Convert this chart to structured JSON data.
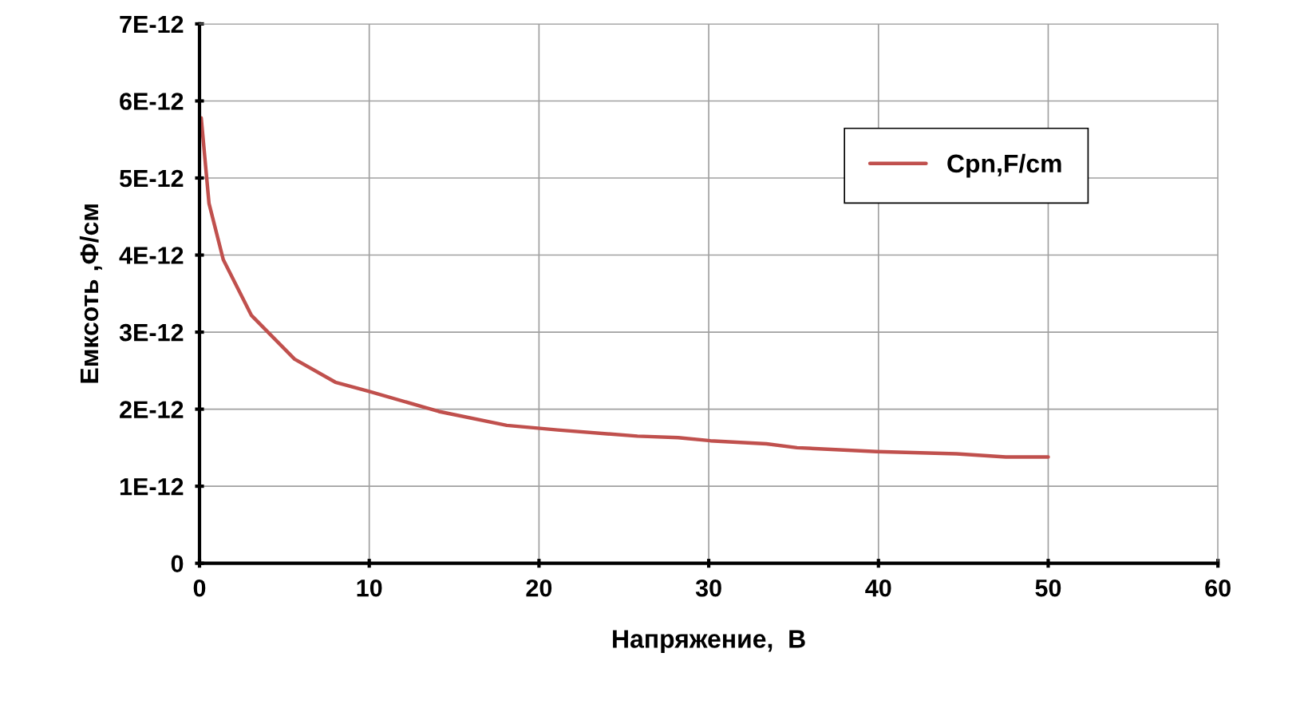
{
  "chart_data": {
    "type": "line",
    "xlabel": "Напряжение,  В",
    "ylabel": "Емксоть ,Ф/см",
    "series": [
      {
        "name": "Cpn,F/cm",
        "color": "#c0504d",
        "x": [
          0.1,
          0.56,
          1.4,
          3.05,
          5.6,
          8.0,
          10.0,
          14.1,
          18.1,
          21.1,
          25.8,
          28.2,
          30.1,
          33.4,
          35.2,
          39.9,
          44.6,
          47.5,
          50.0
        ],
        "values": [
          5.78e-12,
          4.67e-12,
          3.94e-12,
          3.22e-12,
          2.65e-12,
          2.35e-12,
          2.23e-12,
          1.97e-12,
          1.79e-12,
          1.73e-12,
          1.65e-12,
          1.63e-12,
          1.59e-12,
          1.55e-12,
          1.5e-12,
          1.45e-12,
          1.42e-12,
          1.38e-12,
          1.38e-12
        ]
      }
    ],
    "xlim": [
      0,
      60
    ],
    "xticks": [
      0,
      10,
      20,
      30,
      40,
      50,
      60
    ],
    "ylim": [
      0,
      7e-12
    ],
    "yticks": [
      0,
      {
        "value": 1e-12,
        "label": "1E-12"
      },
      {
        "value": 2e-12,
        "label": "2E-12"
      },
      {
        "value": 3e-12,
        "label": "3E-12"
      },
      {
        "value": 4e-12,
        "label": "4E-12"
      },
      {
        "value": 5e-12,
        "label": "5E-12"
      },
      {
        "value": 6e-12,
        "label": "6E-12"
      },
      {
        "value": 7e-12,
        "label": "7E-12"
      }
    ],
    "grid": true,
    "legend": "top right",
    "marker": "none",
    "line_style": "solid"
  }
}
